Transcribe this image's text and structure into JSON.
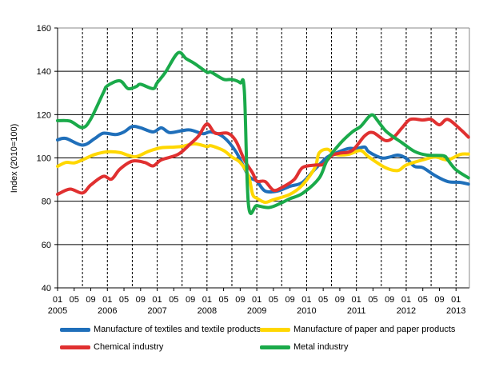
{
  "chart_data": {
    "type": "line",
    "title": "",
    "xlabel": "",
    "ylabel": "Index (2010=100)",
    "ylim": [
      40,
      160
    ],
    "yticks": [
      40,
      60,
      80,
      100,
      120,
      140,
      160
    ],
    "xrange": [
      "2005-01",
      "2013-04"
    ],
    "x_month_labels": [
      "01",
      "05",
      "09"
    ],
    "x_year_labels": [
      "2005",
      "2006",
      "2007",
      "2008",
      "2009",
      "2010",
      "2011",
      "2012",
      "2013"
    ],
    "grid": "horizontal solid, vertical dashed",
    "legend_placement": "bottom",
    "series": [
      {
        "name": "Manufacture of textiles and textile products",
        "color": "#1f6fba",
        "points": [
          [
            "2005-01",
            108.3
          ],
          [
            "2005-03",
            109
          ],
          [
            "2005-07",
            105.9
          ],
          [
            "2005-10",
            109
          ],
          [
            "2005-12",
            111.4
          ],
          [
            "2006-03",
            110.8
          ],
          [
            "2006-05",
            112
          ],
          [
            "2006-07",
            114.5
          ],
          [
            "2006-09",
            113.9
          ],
          [
            "2006-12",
            112
          ],
          [
            "2007-02",
            113.9
          ],
          [
            "2007-04",
            111.7
          ],
          [
            "2007-07",
            112.6
          ],
          [
            "2007-09",
            112.9
          ],
          [
            "2007-12",
            111.2
          ],
          [
            "2008-02",
            112
          ],
          [
            "2008-05",
            109.6
          ],
          [
            "2008-08",
            102.8
          ],
          [
            "2008-11",
            91.8
          ],
          [
            "2009-01",
            89.3
          ],
          [
            "2009-03",
            84.7
          ],
          [
            "2009-06",
            84.7
          ],
          [
            "2009-09",
            86.9
          ],
          [
            "2009-12",
            88.7
          ],
          [
            "2010-03",
            94.8
          ],
          [
            "2010-06",
            100.4
          ],
          [
            "2010-08",
            102.2
          ],
          [
            "2010-11",
            104.3
          ],
          [
            "2011-01",
            104.3
          ],
          [
            "2011-03",
            105
          ],
          [
            "2011-04",
            102.8
          ],
          [
            "2011-07",
            100
          ],
          [
            "2011-09",
            100.4
          ],
          [
            "2011-11",
            101.3
          ],
          [
            "2012-01",
            99.8
          ],
          [
            "2012-03",
            96.1
          ],
          [
            "2012-05",
            95.5
          ],
          [
            "2012-08",
            91.8
          ],
          [
            "2012-11",
            89.1
          ],
          [
            "2013-02",
            88.7
          ],
          [
            "2013-04",
            87.9
          ]
        ]
      },
      {
        "name": "Manufacture of paper and paper products",
        "color": "#ffd700",
        "points": [
          [
            "2005-01",
            96.1
          ],
          [
            "2005-03",
            97.9
          ],
          [
            "2005-05",
            97.7
          ],
          [
            "2005-07",
            99.1
          ],
          [
            "2005-10",
            101.6
          ],
          [
            "2006-01",
            102.8
          ],
          [
            "2006-04",
            102.5
          ],
          [
            "2006-06",
            101.2
          ],
          [
            "2006-08",
            100.6
          ],
          [
            "2006-11",
            103.1
          ],
          [
            "2007-02",
            104.7
          ],
          [
            "2007-05",
            105
          ],
          [
            "2007-07",
            105.3
          ],
          [
            "2007-10",
            106.5
          ],
          [
            "2008-01",
            105.3
          ],
          [
            "2008-02",
            105.6
          ],
          [
            "2008-05",
            103.4
          ],
          [
            "2008-07",
            100.4
          ],
          [
            "2008-09",
            97.9
          ],
          [
            "2008-11",
            91.8
          ],
          [
            "2008-12",
            83.2
          ],
          [
            "2009-01",
            81.4
          ],
          [
            "2009-03",
            79.5
          ],
          [
            "2009-05",
            80.7
          ],
          [
            "2009-09",
            83.2
          ],
          [
            "2009-12",
            87.5
          ],
          [
            "2010-03",
            95.5
          ],
          [
            "2010-04",
            102.2
          ],
          [
            "2010-06",
            104
          ],
          [
            "2010-08",
            101.6
          ],
          [
            "2010-11",
            101.6
          ],
          [
            "2011-02",
            103.4
          ],
          [
            "2011-04",
            100.4
          ],
          [
            "2011-08",
            95.5
          ],
          [
            "2011-11",
            94.2
          ],
          [
            "2012-01",
            96.7
          ],
          [
            "2012-05",
            99.1
          ],
          [
            "2012-08",
            100.4
          ],
          [
            "2012-11",
            99.1
          ],
          [
            "2013-02",
            101.6
          ],
          [
            "2013-04",
            101.8
          ]
        ]
      },
      {
        "name": "Chemical industry",
        "color": "#e03030",
        "points": [
          [
            "2005-01",
            83.2
          ],
          [
            "2005-04",
            85.6
          ],
          [
            "2005-07",
            83.8
          ],
          [
            "2005-09",
            87.5
          ],
          [
            "2005-12",
            91.5
          ],
          [
            "2006-02",
            90.2
          ],
          [
            "2006-04",
            94.8
          ],
          [
            "2006-07",
            98.5
          ],
          [
            "2006-10",
            97.9
          ],
          [
            "2006-12",
            96.3
          ],
          [
            "2007-02",
            99.1
          ],
          [
            "2007-06",
            101.6
          ],
          [
            "2007-09",
            106.5
          ],
          [
            "2007-11",
            110.2
          ],
          [
            "2008-01",
            115.7
          ],
          [
            "2008-03",
            111.4
          ],
          [
            "2008-06",
            111.4
          ],
          [
            "2008-08",
            107.7
          ],
          [
            "2008-10",
            99.1
          ],
          [
            "2008-12",
            93
          ],
          [
            "2009-01",
            89.3
          ],
          [
            "2009-03",
            89.1
          ],
          [
            "2009-05",
            85.1
          ],
          [
            "2009-07",
            86.3
          ],
          [
            "2009-10",
            90
          ],
          [
            "2009-12",
            95.5
          ],
          [
            "2010-03",
            96.7
          ],
          [
            "2010-05",
            97
          ],
          [
            "2010-07",
            101
          ],
          [
            "2010-09",
            102.2
          ],
          [
            "2010-12",
            103.4
          ],
          [
            "2011-03",
            110.2
          ],
          [
            "2011-05",
            111.7
          ],
          [
            "2011-08",
            108
          ],
          [
            "2011-10",
            109.6
          ],
          [
            "2011-12",
            113.9
          ],
          [
            "2012-02",
            117.8
          ],
          [
            "2012-05",
            117.5
          ],
          [
            "2012-07",
            117.8
          ],
          [
            "2012-09",
            115.3
          ],
          [
            "2012-11",
            117.8
          ],
          [
            "2013-02",
            113.3
          ],
          [
            "2013-04",
            109.6
          ]
        ]
      },
      {
        "name": "Metal industry",
        "color": "#1aaa4a",
        "points": [
          [
            "2005-01",
            117.2
          ],
          [
            "2005-04",
            117
          ],
          [
            "2005-07",
            114
          ],
          [
            "2005-09",
            118
          ],
          [
            "2005-12",
            130
          ],
          [
            "2006-01",
            133.3
          ],
          [
            "2006-04",
            135.6
          ],
          [
            "2006-06",
            132
          ],
          [
            "2006-08",
            133
          ],
          [
            "2006-09",
            134
          ],
          [
            "2006-12",
            132
          ],
          [
            "2007-01",
            134.7
          ],
          [
            "2007-03",
            139.6
          ],
          [
            "2007-06",
            148.5
          ],
          [
            "2007-08",
            145.8
          ],
          [
            "2007-10",
            143.6
          ],
          [
            "2008-01",
            139.6
          ],
          [
            "2008-02",
            139.6
          ],
          [
            "2008-05",
            136.3
          ],
          [
            "2008-07",
            136.2
          ],
          [
            "2008-09",
            134.7
          ],
          [
            "2008-10",
            131
          ],
          [
            "2008-11",
            78.3
          ],
          [
            "2009-01",
            78
          ],
          [
            "2009-04",
            77.1
          ],
          [
            "2009-07",
            79.3
          ],
          [
            "2009-09",
            81.2
          ],
          [
            "2009-12",
            83.6
          ],
          [
            "2010-04",
            90.6
          ],
          [
            "2010-06",
            99.1
          ],
          [
            "2010-09",
            106.5
          ],
          [
            "2010-12",
            112
          ],
          [
            "2011-02",
            114.5
          ],
          [
            "2011-04",
            119
          ],
          [
            "2011-05",
            119.8
          ],
          [
            "2011-06",
            117.5
          ],
          [
            "2011-08",
            112.6
          ],
          [
            "2011-10",
            109.6
          ],
          [
            "2011-12",
            107
          ],
          [
            "2012-03",
            103
          ],
          [
            "2012-06",
            101.3
          ],
          [
            "2012-10",
            101
          ],
          [
            "2012-11",
            99.1
          ],
          [
            "2013-01",
            94.5
          ],
          [
            "2013-04",
            90.8
          ]
        ]
      }
    ]
  }
}
